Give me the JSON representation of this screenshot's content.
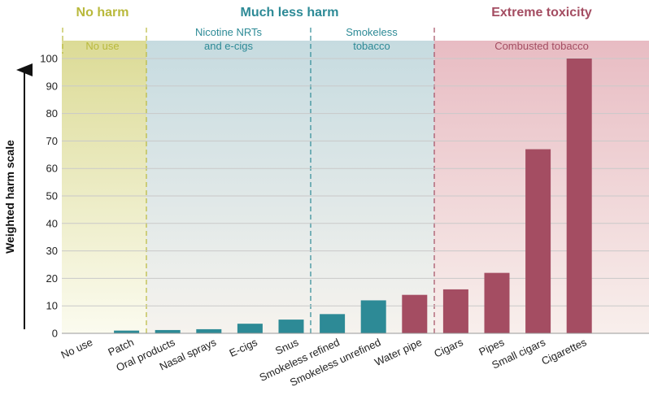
{
  "chart_data": {
    "type": "bar",
    "ylabel": "Weighted harm scale",
    "ylim": [
      0,
      100
    ],
    "yticks": [
      0,
      10,
      20,
      30,
      40,
      50,
      60,
      70,
      80,
      90,
      100
    ],
    "grid": true,
    "categories": [
      "No use",
      "Patch",
      "Oral products",
      "Nasal sprays",
      "E-cigs",
      "Snus",
      "Smokeless refined",
      "Smokeless unrefined",
      "Water pipe",
      "Cigars",
      "Pipes",
      "Small cigars",
      "Cigarettes"
    ],
    "values": [
      0,
      1,
      1.2,
      1.5,
      3.5,
      5,
      7,
      12,
      14,
      16,
      22,
      67,
      100
    ],
    "bar_colors": [
      "#2d8a96",
      "#2d8a96",
      "#2d8a96",
      "#2d8a96",
      "#2d8a96",
      "#2d8a96",
      "#2d8a96",
      "#2d8a96",
      "#a44d62",
      "#a44d62",
      "#a44d62",
      "#a44d62",
      "#a44d62"
    ],
    "harm_levels": [
      {
        "title": "No harm",
        "color": "#b9b93c"
      },
      {
        "title": "Much less harm",
        "color": "#2d8a96"
      },
      {
        "title": "Extreme toxicity",
        "color": "#a44d62"
      }
    ],
    "product_groups": [
      {
        "label_lines": [
          "No use"
        ],
        "color": "#b9b93c"
      },
      {
        "label_lines": [
          "Nicotine NRTs",
          "and e-cigs"
        ],
        "color": "#2d8a96"
      },
      {
        "label_lines": [
          "Smokeless",
          "tobacco"
        ],
        "color": "#2d8a96"
      },
      {
        "label_lines": [
          "Combusted tobacco"
        ],
        "color": "#a44d62"
      }
    ]
  }
}
